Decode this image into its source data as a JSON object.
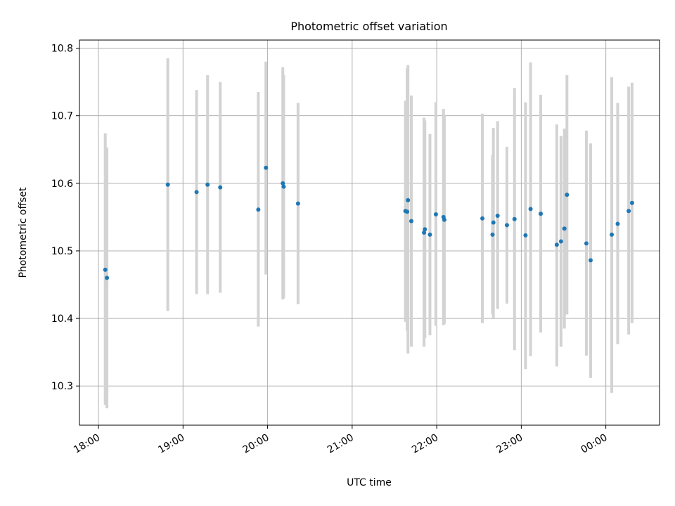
{
  "chart_data": {
    "type": "scatter",
    "title": "Photometric offset variation",
    "xlabel": "UTC time",
    "ylabel": "Photometric offset",
    "grid": true,
    "x_unit": "hours since 18:00 UTC",
    "xlim": [
      -0.225,
      6.635
    ],
    "ylim": [
      10.242,
      10.812
    ],
    "x_ticks": [
      {
        "value": 0,
        "label": "18:00"
      },
      {
        "value": 1,
        "label": "19:00"
      },
      {
        "value": 2,
        "label": "20:00"
      },
      {
        "value": 3,
        "label": "21:00"
      },
      {
        "value": 4,
        "label": "22:00"
      },
      {
        "value": 5,
        "label": "23:00"
      },
      {
        "value": 6,
        "label": "00:00"
      }
    ],
    "y_ticks": [
      {
        "value": 10.3,
        "label": "10.3"
      },
      {
        "value": 10.4,
        "label": "10.4"
      },
      {
        "value": 10.5,
        "label": "10.5"
      },
      {
        "value": 10.6,
        "label": "10.6"
      },
      {
        "value": 10.7,
        "label": "10.7"
      },
      {
        "value": 10.8,
        "label": "10.8"
      }
    ],
    "colors": {
      "point": "#1f77b4",
      "errorbar": "#d3d3d3",
      "grid": "#b0b0b0",
      "axes": "#000000"
    },
    "series": [
      {
        "name": "offset",
        "points": [
          {
            "x": 0.08,
            "y": 10.472,
            "lo": 10.272,
            "hi": 10.674
          },
          {
            "x": 0.1,
            "y": 10.46,
            "lo": 10.267,
            "hi": 10.653
          },
          {
            "x": 0.82,
            "y": 10.598,
            "lo": 10.411,
            "hi": 10.785
          },
          {
            "x": 1.16,
            "y": 10.587,
            "lo": 10.436,
            "hi": 10.738
          },
          {
            "x": 1.29,
            "y": 10.598,
            "lo": 10.436,
            "hi": 10.76
          },
          {
            "x": 1.44,
            "y": 10.594,
            "lo": 10.438,
            "hi": 10.75
          },
          {
            "x": 1.89,
            "y": 10.561,
            "lo": 10.388,
            "hi": 10.735
          },
          {
            "x": 1.98,
            "y": 10.623,
            "lo": 10.465,
            "hi": 10.78
          },
          {
            "x": 2.18,
            "y": 10.6,
            "lo": 10.428,
            "hi": 10.772
          },
          {
            "x": 2.19,
            "y": 10.595,
            "lo": 10.43,
            "hi": 10.76
          },
          {
            "x": 2.36,
            "y": 10.57,
            "lo": 10.421,
            "hi": 10.719
          },
          {
            "x": 3.63,
            "y": 10.559,
            "lo": 10.395,
            "hi": 10.722
          },
          {
            "x": 3.65,
            "y": 10.558,
            "lo": 10.382,
            "hi": 10.77
          },
          {
            "x": 3.66,
            "y": 10.575,
            "lo": 10.348,
            "hi": 10.775
          },
          {
            "x": 3.7,
            "y": 10.544,
            "lo": 10.358,
            "hi": 10.73
          },
          {
            "x": 3.85,
            "y": 10.527,
            "lo": 10.358,
            "hi": 10.697
          },
          {
            "x": 3.86,
            "y": 10.532,
            "lo": 10.371,
            "hi": 10.693
          },
          {
            "x": 3.92,
            "y": 10.524,
            "lo": 10.375,
            "hi": 10.673
          },
          {
            "x": 3.99,
            "y": 10.554,
            "lo": 10.389,
            "hi": 10.72
          },
          {
            "x": 4.08,
            "y": 10.55,
            "lo": 10.39,
            "hi": 10.71
          },
          {
            "x": 4.09,
            "y": 10.546,
            "lo": 10.392,
            "hi": 10.7
          },
          {
            "x": 4.54,
            "y": 10.548,
            "lo": 10.393,
            "hi": 10.703
          },
          {
            "x": 4.66,
            "y": 10.524,
            "lo": 10.406,
            "hi": 10.642
          },
          {
            "x": 4.67,
            "y": 10.542,
            "lo": 10.4,
            "hi": 10.682
          },
          {
            "x": 4.72,
            "y": 10.552,
            "lo": 10.414,
            "hi": 10.692
          },
          {
            "x": 4.83,
            "y": 10.538,
            "lo": 10.422,
            "hi": 10.654
          },
          {
            "x": 4.92,
            "y": 10.547,
            "lo": 10.353,
            "hi": 10.741
          },
          {
            "x": 5.05,
            "y": 10.523,
            "lo": 10.325,
            "hi": 10.72
          },
          {
            "x": 5.11,
            "y": 10.562,
            "lo": 10.344,
            "hi": 10.779
          },
          {
            "x": 5.23,
            "y": 10.555,
            "lo": 10.379,
            "hi": 10.731
          },
          {
            "x": 5.42,
            "y": 10.509,
            "lo": 10.329,
            "hi": 10.687
          },
          {
            "x": 5.47,
            "y": 10.514,
            "lo": 10.358,
            "hi": 10.67
          },
          {
            "x": 5.51,
            "y": 10.533,
            "lo": 10.385,
            "hi": 10.681
          },
          {
            "x": 5.54,
            "y": 10.583,
            "lo": 10.406,
            "hi": 10.76
          },
          {
            "x": 5.77,
            "y": 10.511,
            "lo": 10.345,
            "hi": 10.678
          },
          {
            "x": 5.82,
            "y": 10.486,
            "lo": 10.312,
            "hi": 10.659
          },
          {
            "x": 6.07,
            "y": 10.524,
            "lo": 10.29,
            "hi": 10.757
          },
          {
            "x": 6.14,
            "y": 10.54,
            "lo": 10.362,
            "hi": 10.719
          },
          {
            "x": 6.27,
            "y": 10.559,
            "lo": 10.376,
            "hi": 10.743
          },
          {
            "x": 6.31,
            "y": 10.571,
            "lo": 10.393,
            "hi": 10.749
          }
        ]
      }
    ]
  }
}
